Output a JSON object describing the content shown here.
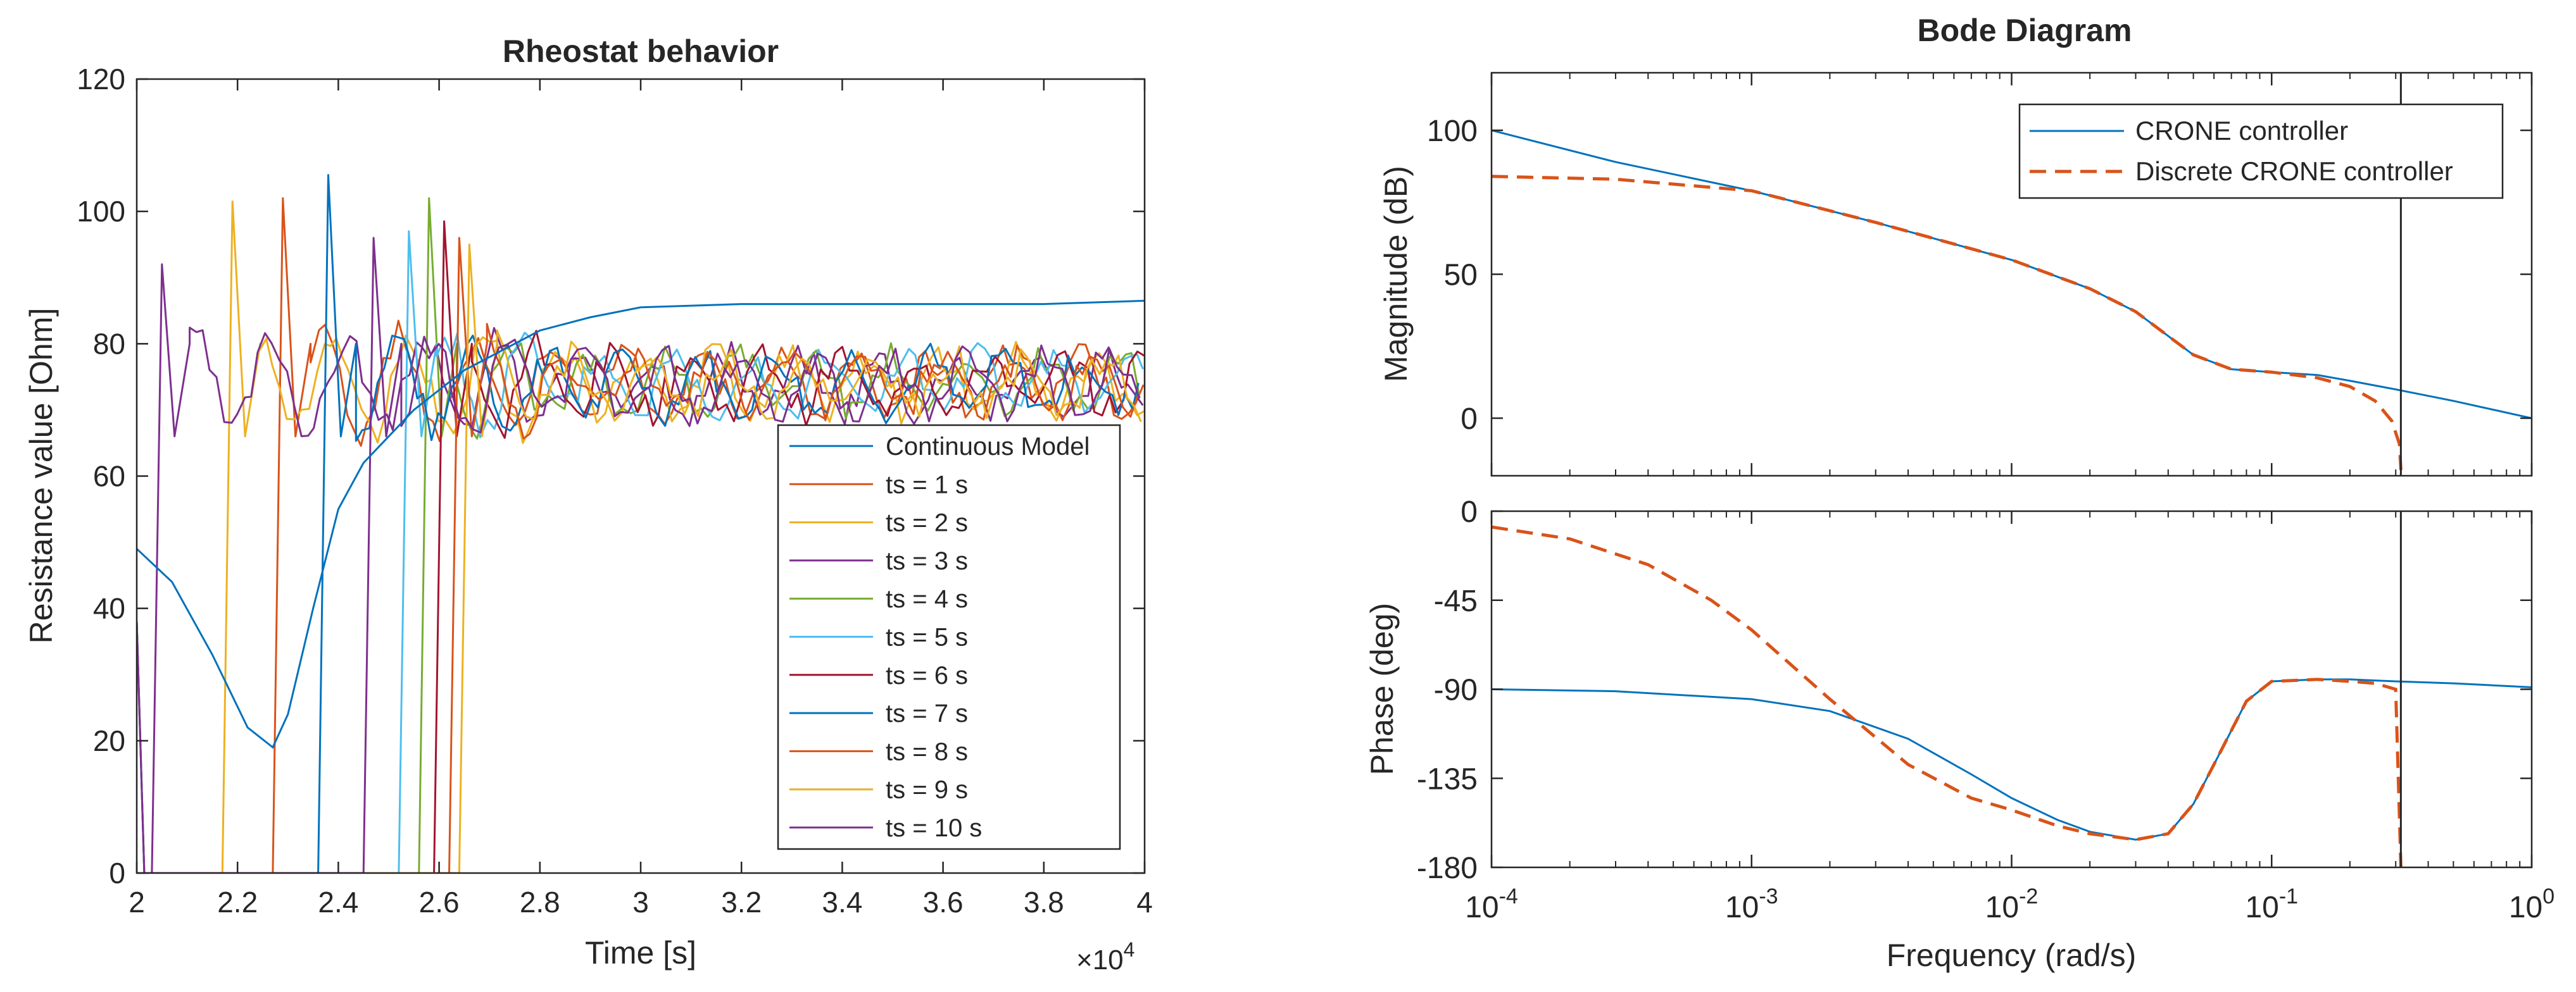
{
  "chart_data": [
    {
      "type": "line",
      "title": "Rheostat behavior",
      "xlabel": "Time [s]",
      "ylabel": "Resistance value [Ohm]",
      "xlim": [
        20000,
        40000
      ],
      "ylim": [
        0,
        120
      ],
      "x_ticks": [
        20000,
        22000,
        24000,
        26000,
        28000,
        30000,
        32000,
        34000,
        36000,
        38000,
        40000
      ],
      "x_tick_labels": [
        "2",
        "2.2",
        "2.4",
        "2.6",
        "2.8",
        "3",
        "3.2",
        "3.4",
        "3.6",
        "3.8",
        "4"
      ],
      "x_exponent_label": "×10",
      "x_exponent_power": "4",
      "y_ticks": [
        0,
        20,
        40,
        60,
        80,
        100,
        120
      ],
      "y_tick_labels": [
        "0",
        "20",
        "40",
        "60",
        "80",
        "100",
        "120"
      ],
      "grid": false,
      "legend_position": "bottom-right",
      "series": [
        {
          "name": "Continuous Model",
          "color": "#0072BD",
          "style": "solid",
          "x": [
            20000,
            20700,
            21500,
            22200,
            22700,
            23000,
            23500,
            24000,
            24500,
            25000,
            25500,
            26000,
            26500,
            27000,
            28000,
            29000,
            30000,
            32000,
            34000,
            36000,
            38000,
            40000
          ],
          "y": [
            49,
            44,
            33,
            22,
            19,
            24,
            40,
            55,
            62,
            66,
            70,
            73,
            76,
            78,
            82,
            84,
            85.5,
            86,
            86,
            86,
            86,
            86.5
          ]
        },
        {
          "name": "ts = 1 s",
          "color": "#D95319",
          "style": "solid",
          "onset": 22900,
          "peak": 102,
          "seed": 1
        },
        {
          "name": "ts = 2 s",
          "color": "#EDB120",
          "style": "solid",
          "onset": 21900,
          "peak": 101.5,
          "seed": 2
        },
        {
          "name": "ts = 3 s",
          "color": "#7E2F8E",
          "style": "solid",
          "onset": 20500,
          "peak": 92,
          "seed": 3
        },
        {
          "name": "ts = 4 s",
          "color": "#77AC30",
          "style": "solid",
          "onset": 25800,
          "peak": 102,
          "seed": 4
        },
        {
          "name": "ts = 5 s",
          "color": "#4DBEEE",
          "style": "solid",
          "onset": 25400,
          "peak": 97,
          "seed": 5
        },
        {
          "name": "ts = 6 s",
          "color": "#A2142F",
          "style": "solid",
          "onset": 26100,
          "peak": 98.5,
          "seed": 6
        },
        {
          "name": "ts = 7 s",
          "color": "#0072BD",
          "style": "solid",
          "onset": 23800,
          "peak": 105.5,
          "seed": 7
        },
        {
          "name": "ts = 8 s",
          "color": "#D95319",
          "style": "solid",
          "onset": 26400,
          "peak": 96,
          "seed": 8
        },
        {
          "name": "ts = 9 s",
          "color": "#EDB120",
          "style": "solid",
          "onset": 26600,
          "peak": 95,
          "seed": 9
        },
        {
          "name": "ts = 10 s",
          "color": "#7E2F8E",
          "style": "solid",
          "onset": 24700,
          "peak": 96,
          "seed": 10
        }
      ]
    },
    {
      "type": "line",
      "title": "Bode Diagram",
      "xlabel": "Frequency  (rad/s)",
      "x_scale": "log",
      "xlim": [
        0.0001,
        1
      ],
      "x_ticks": [
        0.0001,
        0.001,
        0.01,
        0.1,
        1
      ],
      "x_tick_base": "10",
      "x_tick_powers": [
        "-4",
        "-3",
        "-2",
        "-1",
        "0"
      ],
      "vertical_line_x": 0.314,
      "legend_position": "top-right",
      "legend": [
        "CRONE controller",
        "Discrete CRONE controller"
      ],
      "magnitude": {
        "ylabel": "Magnitude (dB)",
        "ylim": [
          -20,
          120
        ],
        "y_ticks": [
          0,
          50,
          100
        ],
        "y_tick_labels": [
          "0",
          "50",
          "100"
        ],
        "series": [
          {
            "name": "CRONE controller",
            "color": "#0072BD",
            "style": "solid",
            "x": [
              0.0001,
              0.0003,
              0.001,
              0.003,
              0.01,
              0.02,
              0.03,
              0.05,
              0.07,
              0.1,
              0.15,
              0.2,
              0.3,
              0.5,
              1
            ],
            "y": [
              100,
              89,
              79,
              68,
              55,
              45,
              37,
              22,
              17,
              16,
              15,
              13,
              10,
              6,
              0
            ]
          },
          {
            "name": "Discrete CRONE controller",
            "color": "#D95319",
            "style": "dashed",
            "x": [
              0.0001,
              0.0003,
              0.001,
              0.003,
              0.01,
              0.02,
              0.03,
              0.05,
              0.07,
              0.1,
              0.15,
              0.2,
              0.25,
              0.29,
              0.31,
              0.314
            ],
            "y": [
              84,
              83,
              79,
              68,
              55,
              45,
              37,
              22,
              17,
              16,
              14,
              11,
              6,
              -1,
              -9,
              -18
            ]
          }
        ]
      },
      "phase": {
        "ylabel": "Phase (deg)",
        "ylim": [
          -180,
          0
        ],
        "y_ticks": [
          0,
          -45,
          -90,
          -135,
          -180
        ],
        "y_tick_labels": [
          "0",
          "-45",
          "-90",
          "-135",
          "-180"
        ],
        "series": [
          {
            "name": "CRONE controller",
            "color": "#0072BD",
            "style": "solid",
            "x": [
              0.0001,
              0.0003,
              0.001,
              0.002,
              0.004,
              0.007,
              0.01,
              0.015,
              0.02,
              0.03,
              0.04,
              0.05,
              0.06,
              0.08,
              0.1,
              0.15,
              0.2,
              0.3,
              0.5,
              1
            ],
            "y": [
              -90,
              -91,
              -95,
              -101,
              -115,
              -133,
              -145,
              -156,
              -162,
              -166,
              -163,
              -148,
              -128,
              -96,
              -86,
              -85,
              -85,
              -86,
              -87,
              -89
            ]
          },
          {
            "name": "Discrete CRONE controller",
            "color": "#D95319",
            "style": "dashed",
            "x": [
              0.0001,
              0.0002,
              0.0004,
              0.0007,
              0.001,
              0.002,
              0.004,
              0.007,
              0.01,
              0.015,
              0.02,
              0.03,
              0.04,
              0.05,
              0.06,
              0.08,
              0.1,
              0.15,
              0.2,
              0.25,
              0.3,
              0.314
            ],
            "y": [
              -8,
              -14,
              -27,
              -45,
              -60,
              -95,
              -128,
              -145,
              -151,
              -159,
              -163,
              -166,
              -163,
              -148,
              -128,
              -96,
              -86,
              -85,
              -86,
              -87,
              -90,
              -180
            ]
          }
        ]
      }
    }
  ]
}
